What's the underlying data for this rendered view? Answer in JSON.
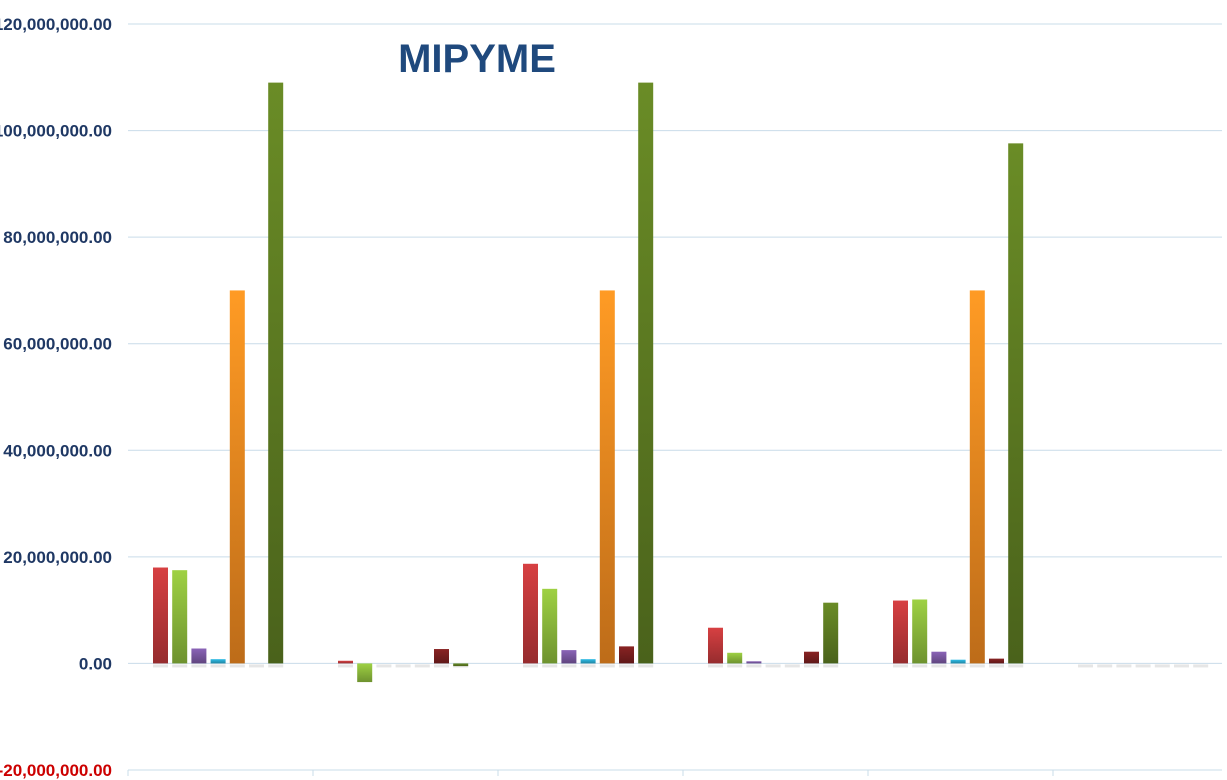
{
  "chart_data": {
    "type": "bar",
    "title": "MIPYME",
    "xlabel": "",
    "ylabel": "",
    "ylim": [
      -20000000,
      120000000
    ],
    "yticks": [
      "120,000,000.00",
      "100,000,000.00",
      "80,000,000.00",
      "60,000,000.00",
      "40,000,000.00",
      "20,000,000.00",
      "0.00",
      "-20,000,000.00"
    ],
    "ytick_values": [
      120000000,
      100000000,
      80000000,
      60000000,
      40000000,
      20000000,
      0,
      -20000000
    ],
    "grid": true,
    "legend": "none",
    "categories": [
      "",
      "",
      "",
      "",
      "",
      ""
    ],
    "series": [
      {
        "color": "#c0393b",
        "values": [
          18000000,
          500000,
          18700000,
          6700000,
          11800000,
          0
        ]
      },
      {
        "color": "#8dbb3c",
        "values": [
          17500000,
          -3500000,
          14000000,
          2000000,
          12000000,
          0
        ]
      },
      {
        "color": "#7b58a3",
        "values": [
          2800000,
          0,
          2500000,
          400000,
          2200000,
          0
        ]
      },
      {
        "color": "#2aa9cf",
        "values": [
          800000,
          0,
          800000,
          0,
          700000,
          0
        ]
      },
      {
        "color": "#f28a20",
        "values": [
          70000000,
          0,
          70000000,
          0,
          70000000,
          0
        ]
      },
      {
        "color": "#7a1f1f",
        "values": [
          0,
          2700000,
          3200000,
          2200000,
          900000,
          0
        ]
      },
      {
        "color": "#5f7d22",
        "values": [
          109000000,
          -500000,
          109000000,
          11400000,
          97600000,
          0
        ]
      }
    ],
    "colors": {
      "title": "#1f497d",
      "tick_text": "#1f3864",
      "negative_tick_text": "#cc0000",
      "gridline": "#c9dce9",
      "baseline_placeholder": "#e6e6e6"
    }
  }
}
